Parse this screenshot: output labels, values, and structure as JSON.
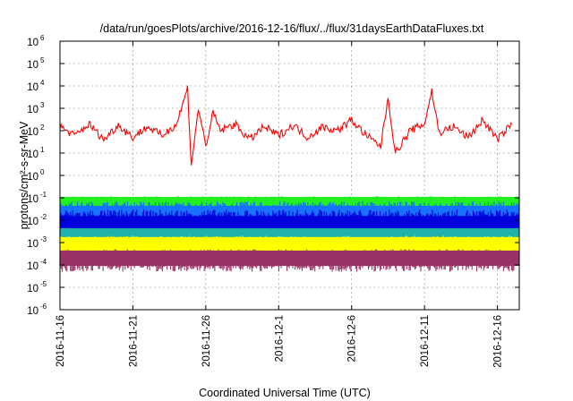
{
  "chart_data": {
    "type": "line",
    "title": "/data/run/goesPlots/archive/2016-12-16/flux/../flux/31daysEarthDataFluxes.txt",
    "xlabel": "Coordinated Universal Time (UTC)",
    "ylabel": "protons/cm²-s-sr-MeV",
    "xlim": [
      "2016-11-16",
      "2016-12-17T12:00"
    ],
    "ylim": [
      1e-06,
      1000000.0
    ],
    "yscale": "log",
    "grid": true,
    "x_ticks": [
      "2016-11-16",
      "2016-11-21",
      "2016-11-26",
      "2016-12-1",
      "2016-12-6",
      "2016-12-11",
      "2016-12-16"
    ],
    "y_ticks": [
      {
        "base": "10",
        "exp": "-6"
      },
      {
        "base": "10",
        "exp": "-5"
      },
      {
        "base": "10",
        "exp": "-4"
      },
      {
        "base": "10",
        "exp": "-3"
      },
      {
        "base": "10",
        "exp": "-2"
      },
      {
        "base": "10",
        "exp": "-1"
      },
      {
        "base": "10",
        "exp": "0"
      },
      {
        "base": "10",
        "exp": "1"
      },
      {
        "base": "10",
        "exp": "2"
      },
      {
        "base": "10",
        "exp": "3"
      },
      {
        "base": "10",
        "exp": "4"
      },
      {
        "base": "10",
        "exp": "5"
      },
      {
        "base": "10",
        "exp": "6"
      }
    ],
    "series": [
      {
        "color": "#ff0000",
        "band": false,
        "x": [
          "2016-11-16",
          "2016-11-17",
          "2016-11-18",
          "2016-11-19",
          "2016-11-20",
          "2016-11-21",
          "2016-11-22",
          "2016-11-23",
          "2016-11-24",
          "2016-11-24T18:00",
          "2016-11-25",
          "2016-11-25T12:00",
          "2016-11-26",
          "2016-11-26T12:00",
          "2016-11-27",
          "2016-11-28",
          "2016-11-29",
          "2016-11-30",
          "2016-12-01",
          "2016-12-02",
          "2016-12-03",
          "2016-12-04",
          "2016-12-05",
          "2016-12-06",
          "2016-12-07",
          "2016-12-08",
          "2016-12-08T12:00",
          "2016-12-09",
          "2016-12-10",
          "2016-12-11",
          "2016-12-11T12:00",
          "2016-12-12",
          "2016-12-13",
          "2016-12-14",
          "2016-12-15",
          "2016-12-16",
          "2016-12-17"
        ],
        "y": [
          150,
          60,
          200,
          40,
          180,
          50,
          150,
          60,
          200,
          8000,
          3,
          1000,
          20,
          600,
          100,
          200,
          40,
          150,
          60,
          180,
          50,
          150,
          100,
          300,
          60,
          20,
          3000,
          10,
          100,
          200,
          6000,
          80,
          150,
          50,
          300,
          40,
          200
        ]
      },
      {
        "color": "#22ee22",
        "band": true,
        "x": [
          "2016-11-16",
          "2016-12-17T12:00"
        ],
        "y": [
          0.05,
          0.05
        ],
        "low": 0.02,
        "high": 0.12
      },
      {
        "color": "#1773ff",
        "band": true,
        "x": [
          "2016-11-16",
          "2016-12-17T12:00"
        ],
        "y": [
          0.02,
          0.02
        ],
        "low": 0.004,
        "high": 0.07
      },
      {
        "color": "#0000dd",
        "band": true,
        "x": [
          "2016-11-16",
          "2016-12-17T12:00"
        ],
        "y": [
          0.007,
          0.007
        ],
        "low": 0.002,
        "high": 0.03
      },
      {
        "color": "#20b2aa",
        "band": true,
        "x": [
          "2016-11-16",
          "2016-12-17T12:00"
        ],
        "y": [
          0.002,
          0.002
        ],
        "low": 0.001,
        "high": 0.004
      },
      {
        "color": "#ffff00",
        "band": true,
        "x": [
          "2016-11-16",
          "2016-12-17T12:00"
        ],
        "y": [
          0.0008,
          0.0008
        ],
        "low": 0.0003,
        "high": 0.002
      },
      {
        "color": "#993366",
        "band": true,
        "x": [
          "2016-11-16",
          "2016-12-17T12:00"
        ],
        "y": [
          0.0002,
          0.0002
        ],
        "low": 5e-05,
        "high": 0.0005
      }
    ]
  }
}
